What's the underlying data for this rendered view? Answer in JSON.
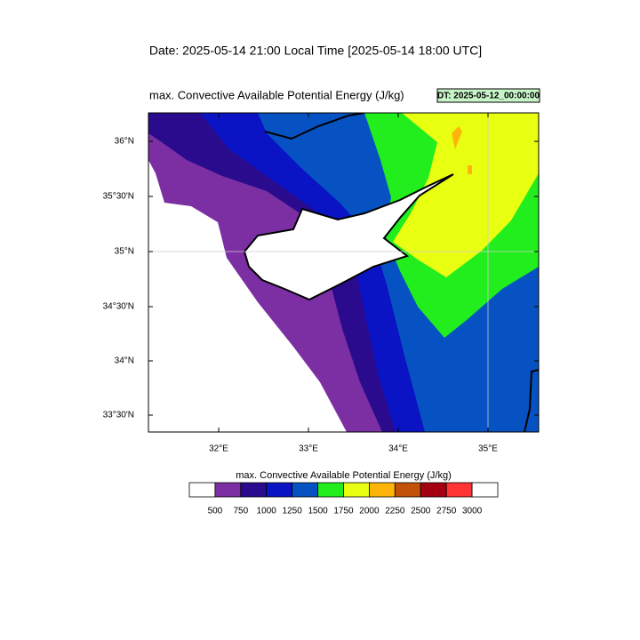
{
  "header": {
    "date": "Date: 2025-05-14  21:00 Local Time [2025-05-14  18:00 UTC]"
  },
  "map": {
    "title": "max. Convective Available Potential Energy   (J/kg)",
    "dt": "DT: 2025-05-12_00:00:00",
    "lat_labels": [
      "36°N",
      "35°30'N",
      "35°N",
      "34°30'N",
      "34°N",
      "33°30'N"
    ],
    "lon_labels": [
      "32°E",
      "33°E",
      "34°E",
      "35°E"
    ]
  },
  "colorbar": {
    "title": "max. Convective Available Potential Energy  (J/kg)",
    "levels": [
      500,
      750,
      1000,
      1250,
      1500,
      1750,
      2000,
      2250,
      2500,
      2750,
      3000
    ],
    "colors": [
      "#ffffff",
      "#7b2fa3",
      "#2a0b8e",
      "#0a14c4",
      "#0652c2",
      "#22ee1e",
      "#e9ff12",
      "#ffb40a",
      "#c2520a",
      "#a40012",
      "#ff3434",
      "#ffffff"
    ]
  }
}
